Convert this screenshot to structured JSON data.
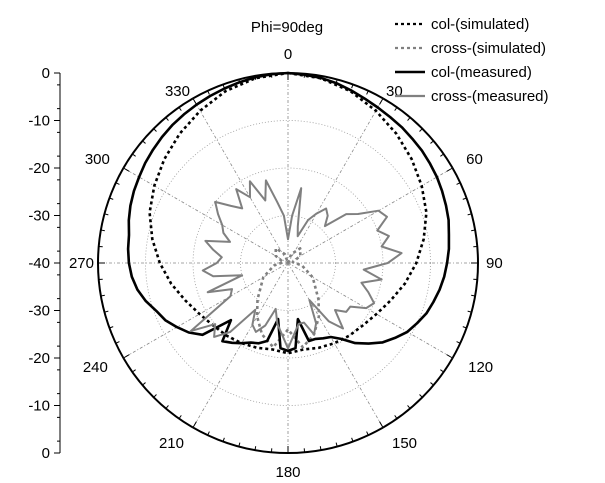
{
  "chart_data": {
    "type": "polar",
    "title": "Phi=90deg",
    "radial_axis": {
      "range": [
        -40,
        0
      ],
      "tick_labels_upper": [
        "0",
        "-10",
        "-20",
        "-30",
        "-40"
      ],
      "tick_labels_lower": [
        "-30",
        "-20",
        "-10",
        "0"
      ],
      "grid_ticks": [
        0,
        -10,
        -20,
        -30,
        -40
      ]
    },
    "angular_axis": {
      "tick_labels": [
        "0",
        "30",
        "60",
        "90",
        "120",
        "150",
        "180",
        "210",
        "240",
        "270",
        "300",
        "330"
      ]
    },
    "legend_position": "top-right",
    "series": [
      {
        "name": "col-(simulated)",
        "style": "dotted",
        "color": "#000000",
        "angles": [
          0,
          10,
          20,
          30,
          40,
          50,
          60,
          70,
          80,
          90,
          100,
          110,
          120,
          130,
          140,
          150,
          160,
          170,
          180,
          190,
          200,
          210,
          220,
          230,
          240,
          250,
          260,
          270,
          280,
          290,
          300,
          310,
          320,
          330,
          340,
          350
        ],
        "values": [
          0,
          -0.5,
          -1.5,
          -3,
          -4.5,
          -6,
          -7.5,
          -9,
          -11,
          -13,
          -15,
          -17,
          -18.5,
          -19.5,
          -20,
          -20.5,
          -21,
          -21.5,
          -21,
          -21.5,
          -21,
          -20.5,
          -20,
          -19.5,
          -18.5,
          -17,
          -15,
          -13,
          -11,
          -9,
          -7.5,
          -6,
          -4.5,
          -3,
          -1.5,
          -0.5
        ]
      },
      {
        "name": "cross-(simulated)",
        "style": "dotted",
        "color": "#808080",
        "angles": [
          0,
          20,
          40,
          60,
          80,
          100,
          120,
          140,
          150,
          160,
          170,
          180,
          190,
          200,
          210,
          220,
          240,
          260,
          280,
          300,
          320,
          340
        ],
        "values": [
          -40,
          -38,
          -36,
          -37,
          -39,
          -37,
          -34,
          -30,
          -27,
          -24,
          -22,
          -26,
          -22,
          -24,
          -27,
          -30,
          -34,
          -37,
          -39,
          -37,
          -36,
          -38
        ]
      },
      {
        "name": "col-(measured)",
        "style": "solid",
        "color": "#000000",
        "angles": [
          0,
          5,
          10,
          15,
          20,
          25,
          30,
          35,
          40,
          45,
          50,
          55,
          60,
          65,
          70,
          75,
          80,
          85,
          90,
          95,
          100,
          105,
          110,
          115,
          120,
          125,
          130,
          135,
          140,
          145,
          150,
          155,
          160,
          165,
          170,
          175,
          180,
          185,
          190,
          195,
          200,
          205,
          210,
          215,
          220,
          225,
          230,
          235,
          240,
          245,
          250,
          255,
          260,
          265,
          270,
          275,
          280,
          285,
          290,
          295,
          300,
          305,
          310,
          315,
          320,
          325,
          330,
          335,
          340,
          345,
          350,
          355
        ],
        "values": [
          0,
          -0.2,
          -0.4,
          -0.8,
          -1.3,
          -1.8,
          -2.2,
          -2.5,
          -2.7,
          -3.0,
          -3.2,
          -3.5,
          -3.8,
          -4.2,
          -4.6,
          -5.0,
          -5.6,
          -6.0,
          -6.5,
          -7.0,
          -7.6,
          -8.3,
          -9.0,
          -10.0,
          -11.0,
          -12.5,
          -14.0,
          -16.0,
          -18.0,
          -20.5,
          -22.0,
          -22.5,
          -23.0,
          -23.0,
          -28.0,
          -22.0,
          -21.5,
          -22.0,
          -28.0,
          -23.0,
          -22.0,
          -21.5,
          -20.5,
          -19.5,
          -18.5,
          -23.0,
          -16.5,
          -14.5,
          -13.0,
          -11.5,
          -10.5,
          -9.0,
          -7.8,
          -7.0,
          -6.5,
          -6.2,
          -6.0,
          -5.3,
          -4.7,
          -4.2,
          -3.8,
          -3.3,
          -2.9,
          -2.5,
          -2.1,
          -1.8,
          -1.5,
          -1.2,
          -0.9,
          -0.6,
          -0.3,
          -0.1
        ]
      },
      {
        "name": "cross-(measured)",
        "style": "solid",
        "color": "#808080",
        "angles": [
          0,
          5,
          10,
          15,
          20,
          25,
          30,
          35,
          40,
          45,
          50,
          55,
          60,
          65,
          70,
          75,
          80,
          85,
          90,
          95,
          100,
          105,
          110,
          115,
          120,
          125,
          130,
          135,
          140,
          145,
          150,
          155,
          160,
          165,
          170,
          175,
          180,
          185,
          190,
          195,
          200,
          205,
          210,
          215,
          220,
          225,
          230,
          235,
          240,
          245,
          250,
          255,
          260,
          265,
          270,
          275,
          280,
          285,
          290,
          295,
          300,
          305,
          310,
          315,
          320,
          325,
          330,
          335,
          340,
          345,
          350,
          355
        ],
        "values": [
          -35,
          -30,
          -24,
          -32,
          -34,
          -30,
          -28,
          -26,
          -27,
          -29,
          -24,
          -22,
          -18,
          -17,
          -20,
          -18,
          -20,
          -16,
          -19,
          -24,
          -20,
          -24,
          -22,
          -20,
          -21,
          -24,
          -24,
          -26,
          -22,
          -25,
          -31,
          -26,
          -24,
          -27,
          -27,
          -25,
          -22,
          -25,
          -27,
          -30,
          -26,
          -24,
          -25,
          -28,
          -21,
          -18,
          -20,
          -15,
          -26,
          -27,
          -22,
          -30,
          -24,
          -22,
          -25,
          -26,
          -24,
          -22,
          -27,
          -25,
          -24,
          -22,
          -20,
          -23,
          -25,
          -21,
          -24,
          -21,
          -26,
          -22,
          -27,
          -30
        ]
      }
    ]
  }
}
